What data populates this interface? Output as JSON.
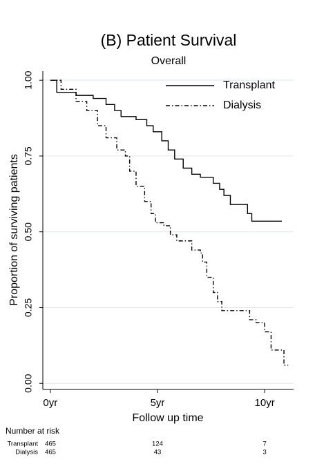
{
  "chart_data": {
    "type": "step",
    "title": "(B) Patient Survival",
    "subtitle": "Overall",
    "x_label": "Follow up time",
    "y_label": "Proportion of surviving patients",
    "xlim": [
      -0.35,
      11.35
    ],
    "ylim": [
      -0.02,
      1.03
    ],
    "xticks": [
      {
        "value": 0,
        "label": "0yr"
      },
      {
        "value": 5,
        "label": "5yr"
      },
      {
        "value": 10,
        "label": "10yr"
      }
    ],
    "yticks": [
      {
        "value": 0,
        "label": "0.00"
      },
      {
        "value": 0.25,
        "label": "0.25"
      },
      {
        "value": 0.5,
        "label": "0.50"
      },
      {
        "value": 0.75,
        "label": "0.75"
      },
      {
        "value": 1,
        "label": "1.00"
      }
    ],
    "grid": true,
    "legend": "top-right",
    "series": [
      {
        "name": "Transplant",
        "color": "#000000",
        "dash": "solid",
        "x": [
          0,
          0.3,
          1.2,
          2.0,
          2.6,
          3.0,
          3.3,
          4.0,
          4.5,
          4.8,
          5.2,
          5.5,
          5.8,
          6.2,
          6.6,
          7.0,
          7.6,
          7.9,
          8.1,
          8.4,
          9.2,
          9.4,
          10.8
        ],
        "values": [
          1.0,
          0.96,
          0.95,
          0.94,
          0.92,
          0.9,
          0.88,
          0.87,
          0.85,
          0.83,
          0.8,
          0.77,
          0.74,
          0.71,
          0.69,
          0.68,
          0.66,
          0.64,
          0.62,
          0.59,
          0.56,
          0.535,
          0.535
        ]
      },
      {
        "name": "Dialysis",
        "color": "#000000",
        "dash": "dashdot",
        "x": [
          0,
          0.5,
          1.2,
          1.7,
          2.2,
          2.6,
          3.1,
          3.5,
          3.7,
          4.0,
          4.4,
          4.7,
          4.9,
          5.3,
          5.6,
          5.9,
          6.6,
          7.0,
          7.1,
          7.3,
          7.6,
          7.8,
          8.0,
          9.3,
          9.6,
          10.0,
          10.3,
          10.9,
          11.1
        ],
        "values": [
          1.0,
          0.97,
          0.93,
          0.9,
          0.85,
          0.81,
          0.77,
          0.75,
          0.7,
          0.65,
          0.6,
          0.56,
          0.53,
          0.52,
          0.49,
          0.47,
          0.44,
          0.43,
          0.4,
          0.35,
          0.3,
          0.27,
          0.24,
          0.21,
          0.2,
          0.17,
          0.11,
          0.06,
          0.06
        ]
      }
    ],
    "risk_table": {
      "title": "Number at risk",
      "x": [
        0,
        5,
        10
      ],
      "rows": [
        {
          "name": "Transplant",
          "values": [
            465,
            124,
            7
          ]
        },
        {
          "name": "Dialysis",
          "values": [
            465,
            43,
            3
          ]
        }
      ]
    }
  }
}
